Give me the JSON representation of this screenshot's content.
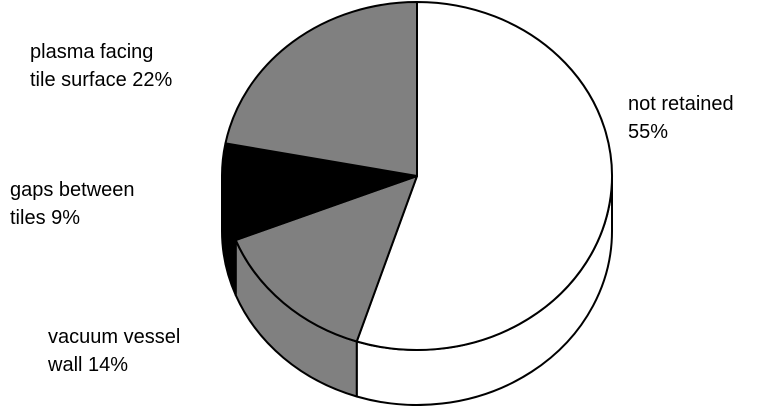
{
  "chart_data": {
    "type": "pie",
    "categories": [
      "not retained",
      "vacuum vessel wall",
      "gaps between tiles",
      "plasma facing tile surface"
    ],
    "values": [
      55,
      14,
      9,
      22
    ],
    "value_labels": [
      "55%",
      "14%",
      "9%",
      "22%"
    ],
    "colors": [
      "#ffffff",
      "#808080",
      "#000000",
      "#808080"
    ]
  }
}
